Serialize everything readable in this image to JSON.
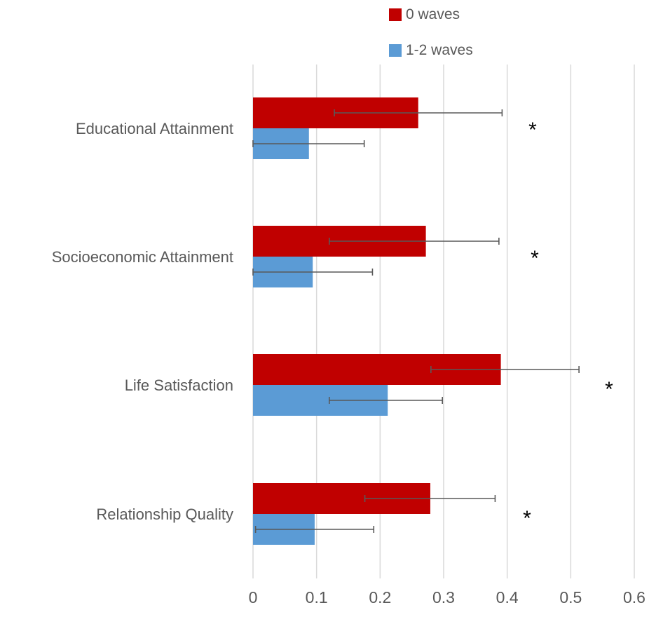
{
  "chart_data": {
    "type": "bar",
    "orientation": "horizontal",
    "categories": [
      "Educational Attainment",
      "Socioeconomic Attainment",
      "Life Satisfaction",
      "Relationship Quality"
    ],
    "series": [
      {
        "name": "0 waves",
        "color": "#C00000",
        "values": [
          0.26,
          0.272,
          0.39,
          0.279
        ],
        "error_low": [
          0.128,
          0.12,
          0.28,
          0.176
        ],
        "error_high": [
          0.392,
          0.387,
          0.513,
          0.381
        ]
      },
      {
        "name": "1-2 waves",
        "color": "#5B9BD5",
        "values": [
          0.088,
          0.094,
          0.212,
          0.097
        ],
        "error_low": [
          0.0,
          0.0,
          0.12,
          0.004
        ],
        "error_high": [
          0.175,
          0.188,
          0.298,
          0.19
        ]
      }
    ],
    "annotations": [
      "*",
      "*",
      "*",
      "*"
    ],
    "xlim": [
      0,
      0.6
    ],
    "xticks": [
      "0",
      "0.1",
      "0.2",
      "0.3",
      "0.4",
      "0.5",
      "0.6"
    ],
    "grid": true,
    "legend_position": "top",
    "title": "",
    "xlabel": "",
    "ylabel": ""
  }
}
